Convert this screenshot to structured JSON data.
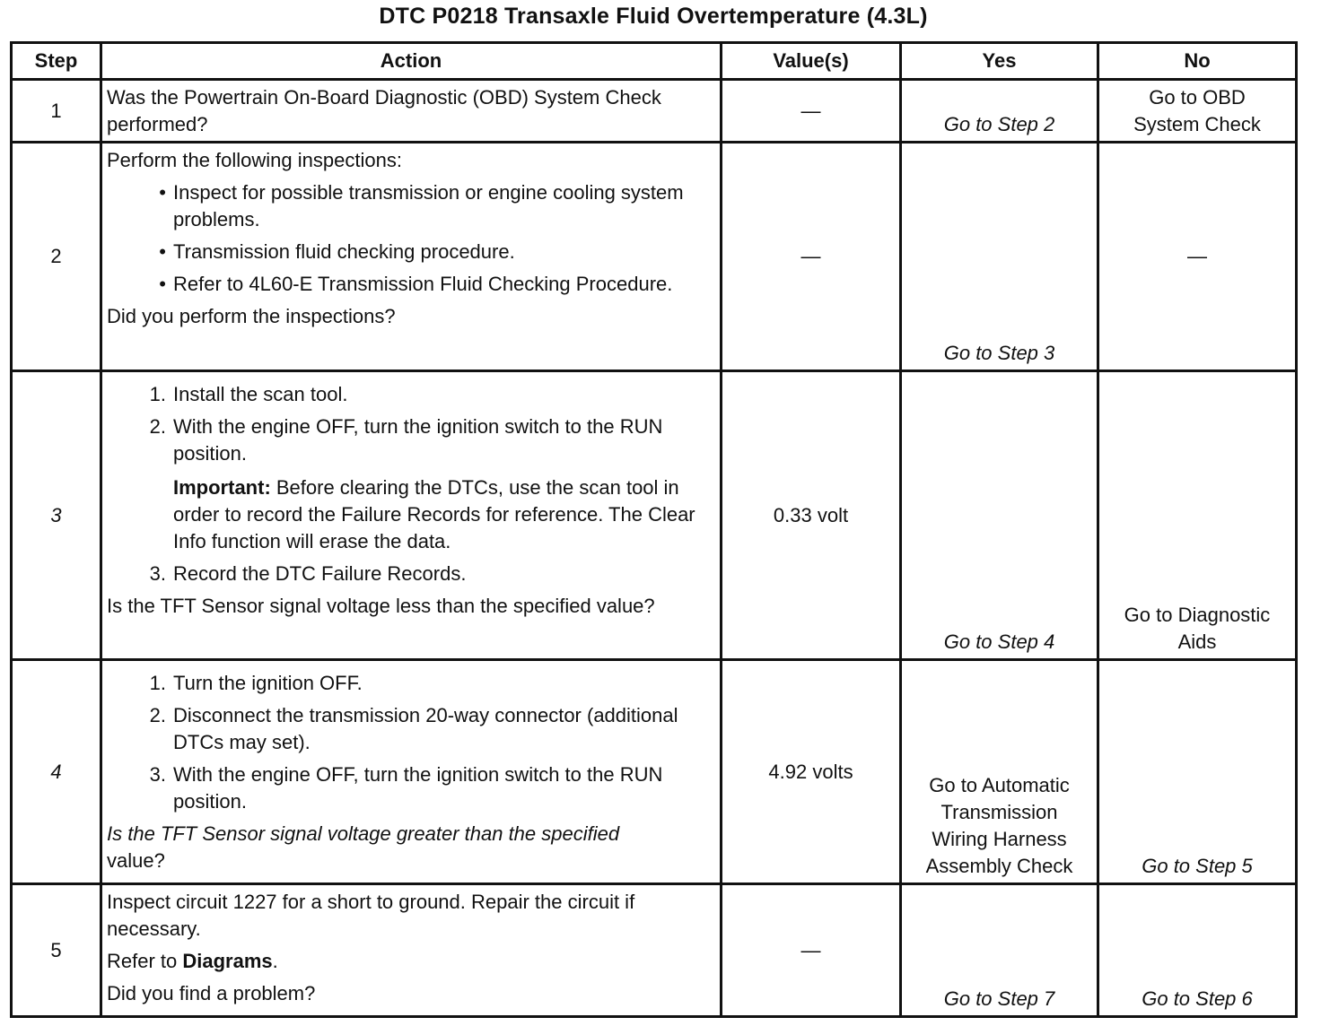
{
  "title": "DTC P0218 Transaxle Fluid Overtemperature (4.3L)",
  "headers": [
    "Step",
    "Action",
    "Value(s)",
    "Yes",
    "No"
  ],
  "rows": [
    {
      "step": "1",
      "action": {
        "text": "Was the Powertrain On-Board Diagnostic (OBD) System Check performed?"
      },
      "value": "—",
      "yes": "Go to Step 2",
      "no": "Go to OBD System Check"
    },
    {
      "step": "2",
      "action": {
        "intro": "Perform the following inspections:",
        "bullets": [
          "Inspect for possible transmission or engine cooling system problems.",
          "Transmission fluid checking procedure.",
          "Refer to 4L60-E Transmission Fluid Checking Procedure."
        ],
        "question": "Did you perform the inspections?"
      },
      "value": "—",
      "yes": "Go to Step 3",
      "no": "—"
    },
    {
      "step": "3",
      "action": {
        "items": [
          "Install the scan tool.",
          "With the engine OFF, turn the ignition switch to the RUN position.",
          "Record the DTC Failure Records."
        ],
        "important_label": "Important:",
        "important_text": " Before clearing the DTCs, use the scan tool in order to record the Failure Records for reference. The Clear Info function will erase the data.",
        "question": "Is the TFT Sensor signal voltage less than the specified value?"
      },
      "value": "0.33 volt",
      "yes": "Go to Step 4",
      "no": "Go to Diagnostic Aids"
    },
    {
      "step": "4",
      "action": {
        "items": [
          "Turn the ignition OFF.",
          "Disconnect the transmission 20-way connector (additional DTCs may set).",
          "With the engine OFF, turn the ignition switch to the RUN position."
        ],
        "question_italic": "Is the TFT Sensor signal voltage greater than the specified",
        "question_rest": "value?"
      },
      "value": "4.92 volts",
      "yes": "Go to Automatic Transmission Wiring Harness Assembly Check",
      "no": "Go to Step 5"
    },
    {
      "step": "5",
      "action": {
        "text": "Inspect circuit 1227 for a short to ground. Repair the circuit if necessary.",
        "refer_prefix": "Refer to ",
        "refer_link": "Diagrams",
        "refer_suffix": ".",
        "question": "Did you find a problem?"
      },
      "value": "—",
      "yes": "Go to Step 7",
      "no": "Go to Step 6"
    }
  ]
}
